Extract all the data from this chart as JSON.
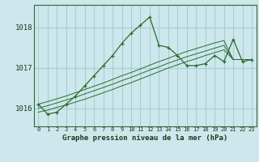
{
  "title": "Graphe pression niveau de la mer (hPa)",
  "bg_color": "#cce8ec",
  "grid_color": "#aaccd4",
  "line_color": "#2d6a2d",
  "x_values": [
    0,
    1,
    2,
    3,
    4,
    5,
    6,
    7,
    8,
    9,
    10,
    11,
    12,
    13,
    14,
    15,
    16,
    17,
    18,
    19,
    20,
    21,
    22,
    23
  ],
  "y_main": [
    1016.1,
    1015.85,
    1015.9,
    1016.1,
    1016.3,
    1016.55,
    1016.8,
    1017.05,
    1017.3,
    1017.6,
    1017.85,
    1018.05,
    1018.25,
    1017.55,
    1017.5,
    1017.3,
    1017.05,
    1017.05,
    1017.1,
    1017.3,
    1017.15,
    1017.7,
    1017.15,
    1017.2
  ],
  "y_trend1": [
    1015.9,
    1015.95,
    1016.02,
    1016.08,
    1016.15,
    1016.22,
    1016.3,
    1016.38,
    1016.46,
    1016.55,
    1016.63,
    1016.72,
    1016.81,
    1016.9,
    1016.99,
    1017.07,
    1017.15,
    1017.22,
    1017.3,
    1017.37,
    1017.44,
    1017.2,
    1017.2,
    1017.2
  ],
  "y_trend2": [
    1016.0,
    1016.06,
    1016.13,
    1016.2,
    1016.27,
    1016.35,
    1016.43,
    1016.51,
    1016.59,
    1016.68,
    1016.76,
    1016.85,
    1016.94,
    1017.02,
    1017.11,
    1017.19,
    1017.27,
    1017.34,
    1017.41,
    1017.48,
    1017.55,
    1017.2,
    1017.2,
    1017.2
  ],
  "y_trend3": [
    1016.1,
    1016.16,
    1016.23,
    1016.3,
    1016.38,
    1016.46,
    1016.54,
    1016.62,
    1016.71,
    1016.8,
    1016.88,
    1016.97,
    1017.06,
    1017.15,
    1017.23,
    1017.32,
    1017.4,
    1017.47,
    1017.54,
    1017.61,
    1017.67,
    1017.2,
    1017.2,
    1017.2
  ],
  "ylim": [
    1015.55,
    1018.55
  ],
  "yticks": [
    1016,
    1017,
    1018
  ],
  "xlim": [
    -0.5,
    23.5
  ],
  "xticks": [
    0,
    1,
    2,
    3,
    4,
    5,
    6,
    7,
    8,
    9,
    10,
    11,
    12,
    13,
    14,
    15,
    16,
    17,
    18,
    19,
    20,
    21,
    22,
    23
  ]
}
